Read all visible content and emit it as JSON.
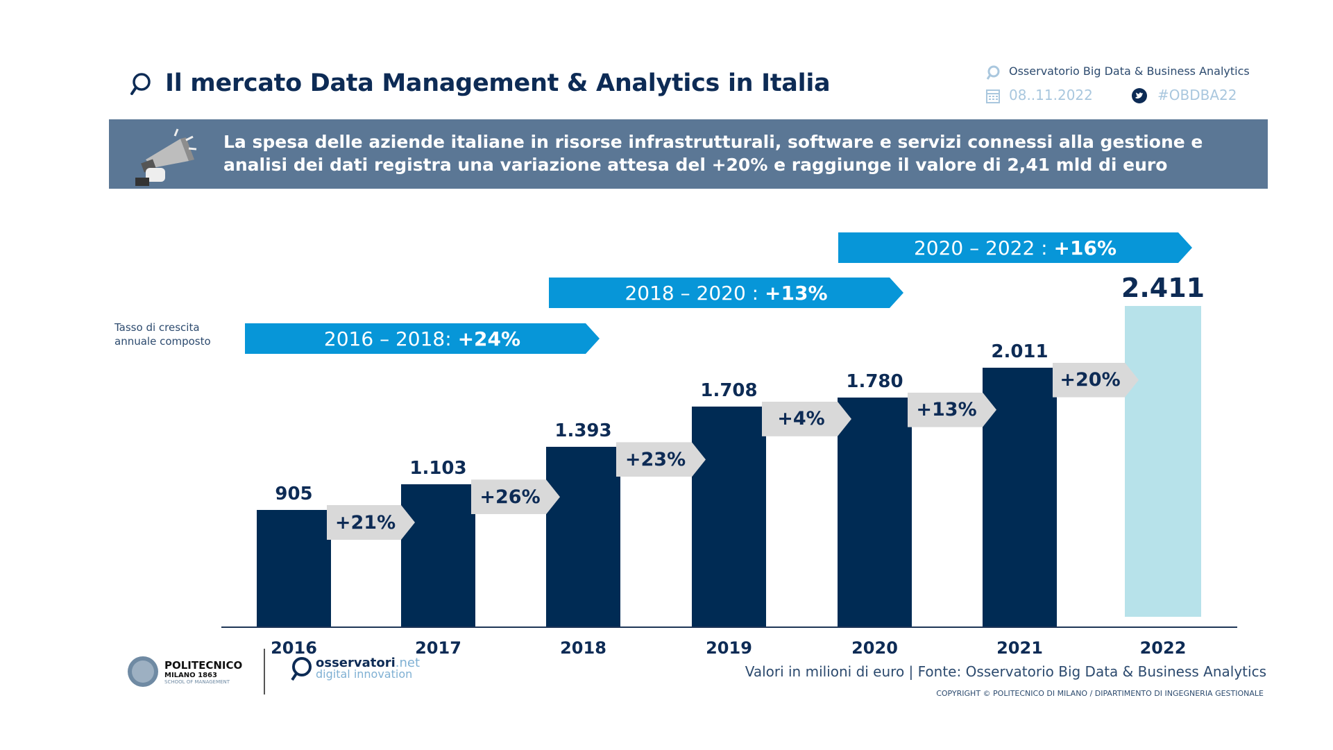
{
  "header": {
    "title": "Il mercato Data Management & Analytics in Italia",
    "observatory": "Osservatorio Big Data & Business Analytics",
    "date": "08..11.2022",
    "hashtag": "#OBDBA22"
  },
  "banner": {
    "line1": "La spesa delle aziende italiane in risorse infrastrutturali, software e servizi connessi alla gestione e",
    "line2": "analisi dei dati registra una variazione attesa del +20% e raggiunge il valore di 2,41 mld di euro"
  },
  "chart_data": {
    "type": "bar",
    "categories": [
      "2016",
      "2017",
      "2018",
      "2019",
      "2020",
      "2021",
      "2022"
    ],
    "values": [
      905,
      1103,
      1393,
      1708,
      1780,
      2011,
      2411
    ],
    "value_labels": [
      "905",
      "1.103",
      "1.393",
      "1.708",
      "1.780",
      "2.011",
      "2.411"
    ],
    "growth_labels": [
      "+21%",
      "+26%",
      "+23%",
      "+4%",
      "+13%",
      "+20%"
    ],
    "cagr_label": "Tasso di crescita annuale composto",
    "cagr": [
      {
        "period": "2016 – 2018:",
        "value": "+24%"
      },
      {
        "period": "2018 – 2020 :",
        "value": "+13%"
      },
      {
        "period": "2020 – 2022 :",
        "value": "+16%"
      }
    ],
    "colors": {
      "bar": "#002b54",
      "forecast_bar": "#b7e2ea",
      "cagr": "#0796d8",
      "growth": "#d9d9d9"
    }
  },
  "footer": {
    "source": "Valori in milioni di euro | Fonte: Osservatorio Big Data & Business Analytics",
    "copyright": "COPYRIGHT © POLITECNICO DI MILANO / DIPARTIMENTO DI INGEGNERIA GESTIONALE",
    "poli_name": "POLITECNICO",
    "poli_sub": "MILANO 1863",
    "poli_school": "SCHOOL OF MANAGEMENT",
    "osserv_name": "osservatori",
    "osserv_tld": ".net",
    "osserv_sub": "digital innovation"
  }
}
